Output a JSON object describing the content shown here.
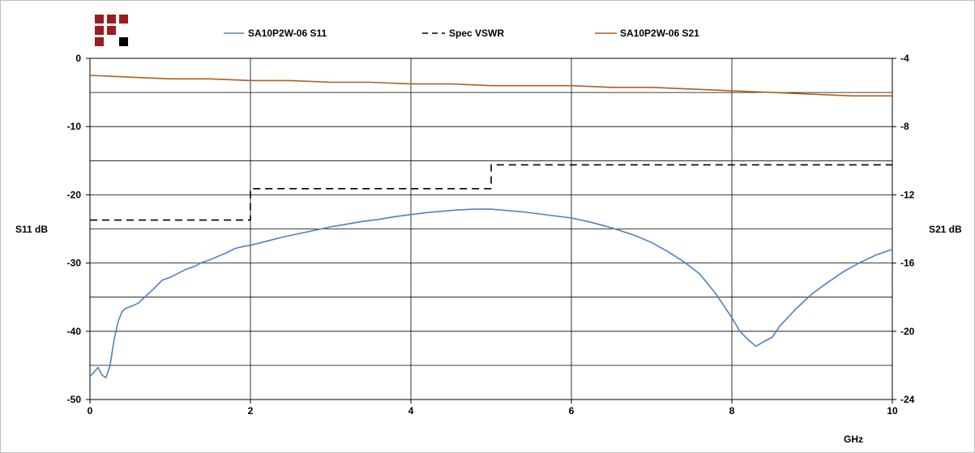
{
  "colors": {
    "s11": "#4f81bd",
    "spec": "#000000",
    "s21": "#b05e1e",
    "logo_red": "#9b1c1c",
    "logo_black": "#000000",
    "grid": "#000000"
  },
  "chart_data": {
    "type": "line",
    "xlabel": "GHz",
    "ylabel": "S11 dB",
    "y2label": "S21 dB",
    "xlim": [
      0,
      10
    ],
    "ylim": [
      -50,
      0
    ],
    "y2lim": [
      -24,
      -4
    ],
    "x_ticks": [
      "0",
      "2",
      "4",
      "6",
      "8",
      "10"
    ],
    "y_ticks": [
      "0",
      "-10",
      "-20",
      "-30",
      "-40",
      "-50"
    ],
    "y2_ticks": [
      "-4",
      "-8",
      "-12",
      "-16",
      "-20",
      "-24"
    ],
    "grid": true,
    "legend_position": "top",
    "series": [
      {
        "name": "SA10P2W-06 S11",
        "axis": "left",
        "style": "solid",
        "x": [
          0.0,
          0.05,
          0.1,
          0.15,
          0.2,
          0.25,
          0.3,
          0.35,
          0.4,
          0.45,
          0.5,
          0.6,
          0.7,
          0.8,
          0.9,
          1.0,
          1.1,
          1.2,
          1.3,
          1.4,
          1.5,
          1.6,
          1.7,
          1.8,
          1.9,
          2.0,
          2.2,
          2.4,
          2.6,
          2.8,
          3.0,
          3.2,
          3.4,
          3.6,
          3.8,
          4.0,
          4.2,
          4.4,
          4.6,
          4.8,
          5.0,
          5.2,
          5.4,
          5.6,
          5.8,
          6.0,
          6.2,
          6.4,
          6.6,
          6.8,
          7.0,
          7.2,
          7.4,
          7.6,
          7.8,
          8.0,
          8.1,
          8.2,
          8.3,
          8.4,
          8.5,
          8.6,
          8.8,
          9.0,
          9.2,
          9.4,
          9.6,
          9.8,
          10.0
        ],
        "y": [
          -46.6,
          -46.0,
          -45.3,
          -46.4,
          -46.8,
          -45.0,
          -41.3,
          -38.6,
          -37.1,
          -36.6,
          -36.4,
          -35.9,
          -34.8,
          -33.7,
          -32.5,
          -32.1,
          -31.5,
          -30.9,
          -30.5,
          -29.9,
          -29.5,
          -29.0,
          -28.5,
          -27.9,
          -27.6,
          -27.4,
          -26.8,
          -26.2,
          -25.7,
          -25.2,
          -24.7,
          -24.3,
          -23.9,
          -23.6,
          -23.2,
          -22.9,
          -22.6,
          -22.4,
          -22.2,
          -22.1,
          -22.1,
          -22.3,
          -22.5,
          -22.8,
          -23.1,
          -23.4,
          -23.9,
          -24.5,
          -25.2,
          -26.0,
          -27.0,
          -28.3,
          -29.8,
          -31.6,
          -34.5,
          -38.0,
          -40.0,
          -41.2,
          -42.2,
          -41.5,
          -40.9,
          -39.2,
          -36.7,
          -34.5,
          -32.8,
          -31.2,
          -29.9,
          -28.8,
          -28.0
        ]
      },
      {
        "name": "Spec VSWR",
        "axis": "left",
        "style": "dashed",
        "x": [
          0.0,
          2.0,
          2.0,
          5.0,
          5.0,
          10.0
        ],
        "y": [
          -23.7,
          -23.7,
          -19.1,
          -19.1,
          -15.6,
          -15.6
        ]
      },
      {
        "name": "SA10P2W-06 S21",
        "axis": "right",
        "style": "solid",
        "x": [
          0.0,
          0.5,
          1.0,
          1.5,
          2.0,
          2.5,
          3.0,
          3.5,
          4.0,
          4.5,
          5.0,
          5.5,
          6.0,
          6.5,
          7.0,
          7.5,
          8.0,
          8.5,
          9.0,
          9.5,
          10.0
        ],
        "y": [
          -5.0,
          -5.1,
          -5.2,
          -5.2,
          -5.3,
          -5.3,
          -5.4,
          -5.4,
          -5.5,
          -5.5,
          -5.6,
          -5.6,
          -5.6,
          -5.7,
          -5.7,
          -5.8,
          -5.9,
          -6.0,
          -6.1,
          -6.2,
          -6.2
        ]
      }
    ]
  }
}
